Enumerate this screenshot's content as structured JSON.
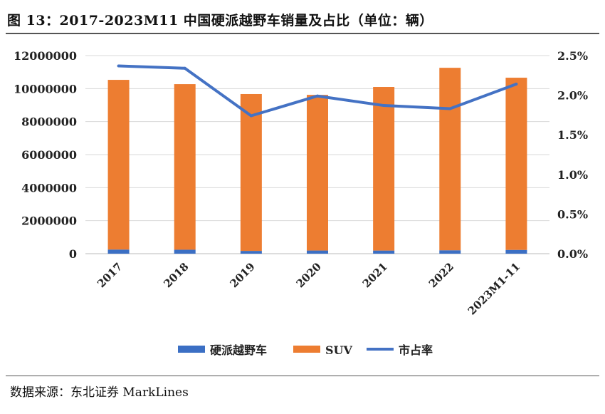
{
  "title": "图 13：2017-2023M11 中国硬派越野车销量及占比（单位：辆）",
  "source": "数据来源：东北证券 MarkLines",
  "chart_data": {
    "type": "bar",
    "stacked": true,
    "categories": [
      "2017",
      "2018",
      "2019",
      "2020",
      "2021",
      "2022",
      "2023M1-11"
    ],
    "series": [
      {
        "name": "硬派越野车",
        "type": "bar",
        "axis": "left",
        "color": "#3b6fc4",
        "values": [
          250000,
          240000,
          168000,
          191000,
          189000,
          206000,
          228000
        ]
      },
      {
        "name": "SUV",
        "type": "bar",
        "axis": "left",
        "color": "#ed7d31",
        "values": [
          10280000,
          10030000,
          9502000,
          9429000,
          9911000,
          11054000,
          10432000
        ]
      },
      {
        "name": "市占率",
        "type": "line",
        "axis": "right",
        "color": "#4472c4",
        "values": [
          2.37,
          2.34,
          1.74,
          1.99,
          1.87,
          1.83,
          2.14
        ]
      }
    ],
    "yleft": {
      "range": [
        0,
        12000000
      ],
      "ticks": [
        "0",
        "2000000",
        "4000000",
        "6000000",
        "8000000",
        "10000000",
        "12000000"
      ]
    },
    "yright": {
      "range": [
        0,
        2.5
      ],
      "ticks": [
        "0.0%",
        "0.5%",
        "1.0%",
        "1.5%",
        "2.0%",
        "2.5%"
      ]
    },
    "grid": true,
    "legend": "bottom"
  }
}
